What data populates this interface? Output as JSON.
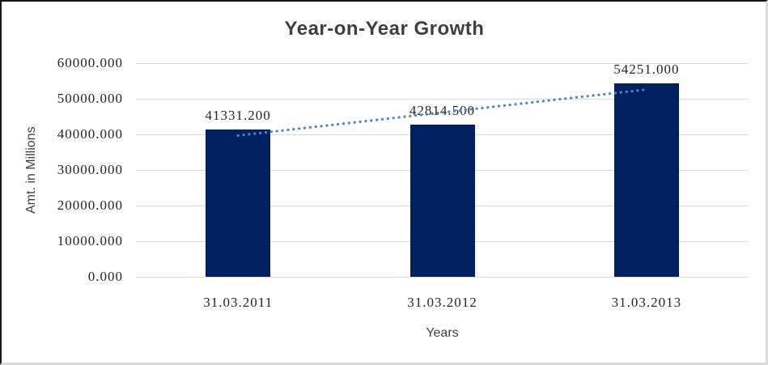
{
  "chart_data": {
    "type": "bar",
    "title": "Year-on-Year Growth",
    "xlabel": "Years",
    "ylabel": "Amt. in Millions",
    "categories": [
      "31.03.2011",
      "31.03.2012",
      "31.03.2013"
    ],
    "values": [
      41331.2,
      42814.5,
      54251.0
    ],
    "data_labels": [
      "41331.200",
      "42814.500",
      "54251.000"
    ],
    "y_ticks": [
      "0.000",
      "10000.000",
      "20000.000",
      "30000.000",
      "40000.000",
      "50000.000",
      "60000.000"
    ],
    "ylim": [
      0,
      60000
    ],
    "grid": true,
    "legend": "none",
    "trendline": {
      "type": "linear",
      "style": "dotted"
    },
    "colors": {
      "bar": "#002060",
      "trendline": "#4a86c8",
      "gridline": "#d9d9d9",
      "number_text": "#262626",
      "title_text": "#3f3f3f",
      "axis_title_text": "#404040"
    }
  }
}
